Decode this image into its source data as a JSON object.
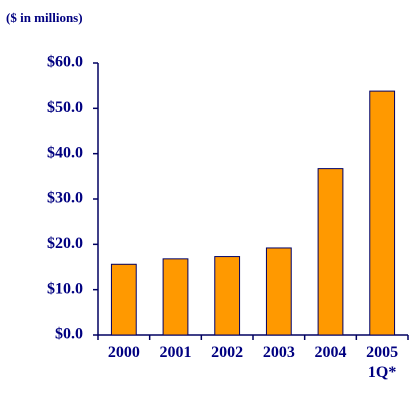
{
  "chart_data": {
    "type": "bar",
    "title": "($ in millions)",
    "categories": [
      "2000",
      "2001",
      "2002",
      "2003",
      "2004",
      "2005 1Q*"
    ],
    "values": [
      15.6,
      16.8,
      17.3,
      19.2,
      36.7,
      53.8
    ],
    "color": "#ff9900",
    "ylim": [
      0,
      60
    ],
    "yticks": [
      {
        "value": 0,
        "label": "$0.0"
      },
      {
        "value": 10,
        "label": "$10.0"
      },
      {
        "value": 20,
        "label": "$20.0"
      },
      {
        "value": 30,
        "label": "$30.0"
      },
      {
        "value": 40,
        "label": "$40.0"
      },
      {
        "value": 50,
        "label": "$50.0"
      },
      {
        "value": 60,
        "label": "$60.0"
      }
    ],
    "grid": false
  }
}
